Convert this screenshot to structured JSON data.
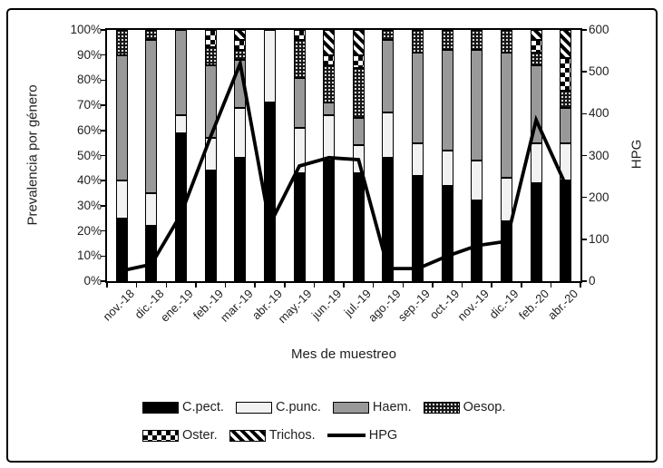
{
  "chart_data": {
    "type": "bar",
    "subtype": "stacked-100pct-column-with-line-overlay",
    "title": "",
    "x_label": "Mes de muestreo",
    "grid": false,
    "legend_position": "bottom",
    "categories": [
      "nov.-18",
      "dic.-18",
      "ene.-19",
      "feb.-19",
      "mar.-19",
      "abr.-19",
      "may.-19",
      "jun.-19",
      "jul.-19",
      "ago.-19",
      "sep.-19",
      "oct.-19",
      "nov.-19",
      "dic.-19",
      "feb.-20",
      "abr.-20"
    ],
    "series": [
      {
        "name": "C.pect.",
        "pattern": "solid",
        "color": "#000000",
        "values": [
          25,
          22,
          59,
          44,
          49,
          71,
          43,
          48,
          43,
          49,
          42,
          38,
          32,
          24,
          39,
          40
        ]
      },
      {
        "name": "C.punc.",
        "pattern": "solid",
        "color": "#f2f2f2",
        "values": [
          15,
          13,
          7,
          13,
          20,
          29,
          18,
          18,
          11,
          18,
          13,
          14,
          16,
          17,
          16,
          15
        ]
      },
      {
        "name": "Haem.",
        "pattern": "solid",
        "color": "#999999",
        "values": [
          50,
          61,
          34,
          29,
          19,
          0,
          20,
          5,
          11,
          29,
          36,
          40,
          44,
          50,
          31,
          14
        ]
      },
      {
        "name": "Oesop.",
        "pattern": "fine-white-dots-on-black",
        "color": "#000000",
        "values": [
          10,
          4,
          0,
          7,
          4,
          0,
          15,
          15,
          20,
          4,
          9,
          8,
          8,
          9,
          5,
          7
        ]
      },
      {
        "name": "Oster.",
        "pattern": "checkerboard",
        "color": "#000000",
        "values": [
          0,
          0,
          0,
          7,
          4,
          0,
          4,
          4,
          5,
          0,
          0,
          0,
          0,
          0,
          5,
          13
        ]
      },
      {
        "name": "Trichos.",
        "pattern": "diagonal-stripes",
        "color": "#000000",
        "values": [
          0,
          0,
          0,
          0,
          4,
          0,
          0,
          10,
          10,
          0,
          0,
          0,
          0,
          0,
          4,
          11
        ]
      }
    ],
    "line_series": {
      "name": "HPG",
      "axis": "right",
      "color": "#000000",
      "values": [
        25,
        40,
        160,
        345,
        520,
        135,
        275,
        295,
        290,
        30,
        30,
        60,
        85,
        95,
        385,
        230
      ]
    },
    "y_left": {
      "label": "Prevalencia por género",
      "min": 0,
      "max": 100,
      "step": 10,
      "format": "percent"
    },
    "y_right": {
      "label": "HPG",
      "min": 0,
      "max": 600,
      "step": 100
    },
    "y_left_ticks": [
      "0%",
      "10%",
      "20%",
      "30%",
      "40%",
      "50%",
      "60%",
      "70%",
      "80%",
      "90%",
      "100%"
    ],
    "y_right_ticks": [
      "0",
      "100",
      "200",
      "300",
      "400",
      "500",
      "600"
    ]
  }
}
